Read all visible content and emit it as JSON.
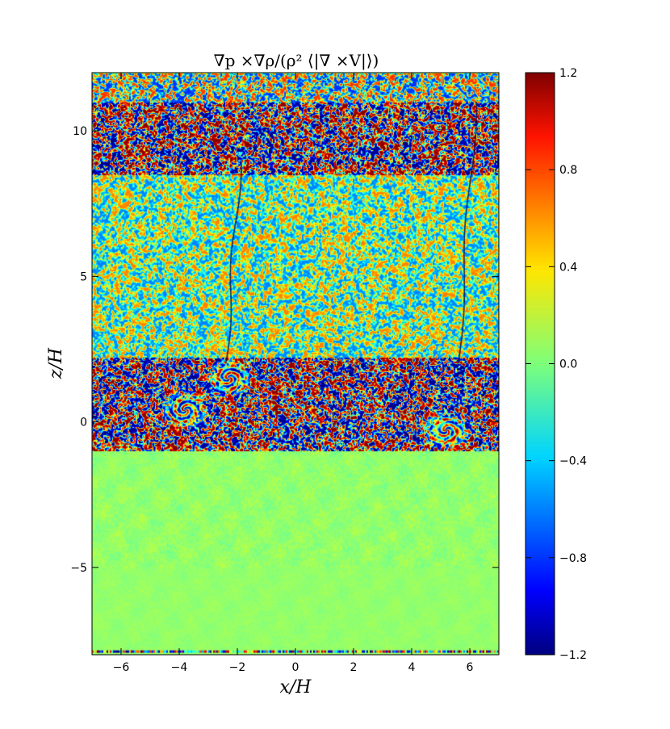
{
  "chart_data": {
    "type": "heatmap",
    "title": "∇p ×∇ρ/(ρ² ⟨|∇ ×V|⟩)",
    "xlabel": "x/H",
    "ylabel": "z/H",
    "xlim": [
      -7,
      7
    ],
    "ylim": [
      -8,
      12
    ],
    "x_ticks": [
      -6,
      -4,
      -2,
      0,
      2,
      4,
      6
    ],
    "x_tick_labels": [
      "−6",
      "−4",
      "−2",
      "0",
      "2",
      "4",
      "6"
    ],
    "y_ticks": [
      -5,
      0,
      5,
      10
    ],
    "y_tick_labels": [
      "−5",
      "0",
      "5",
      "10"
    ],
    "colorbar": {
      "colormap": "jet",
      "range": [
        -1.2,
        1.2
      ],
      "ticks": [
        1.2,
        0.8,
        0.4,
        0.0,
        -0.4,
        -0.8,
        -1.2
      ],
      "tick_labels": [
        "1.2",
        "0.8",
        "0.4",
        "0.0",
        "−0.4",
        "−0.8",
        "−1.2"
      ]
    },
    "field_regions": [
      {
        "z_range": [
          -8,
          -1
        ],
        "description": "quiet",
        "amplitude": 0.12
      },
      {
        "z_range": [
          -1,
          2.2
        ],
        "description": "strong turbulent layer with vortices",
        "amplitude": 1.2
      },
      {
        "z_range": [
          2.2,
          8.5
        ],
        "description": "moderate turbulence",
        "amplitude": 0.6
      },
      {
        "z_range": [
          8.5,
          11
        ],
        "description": "strong turbulent layer",
        "amplitude": 1.2
      },
      {
        "z_range": [
          11,
          12
        ],
        "description": "moderate turbulence",
        "amplitude": 0.8
      }
    ],
    "vortex_centers": [
      {
        "x": -3.8,
        "z": 0.4
      },
      {
        "x": -2.3,
        "z": 1.5
      },
      {
        "x": 5.2,
        "z": -0.3
      }
    ],
    "filament_lines": [
      {
        "x_at_bottom": -2.4,
        "x_at_top": -1.9,
        "z_range": [
          2,
          9
        ]
      },
      {
        "x_at_bottom": 5.6,
        "x_at_top": 6.2,
        "z_range": [
          2,
          11
        ]
      }
    ]
  }
}
